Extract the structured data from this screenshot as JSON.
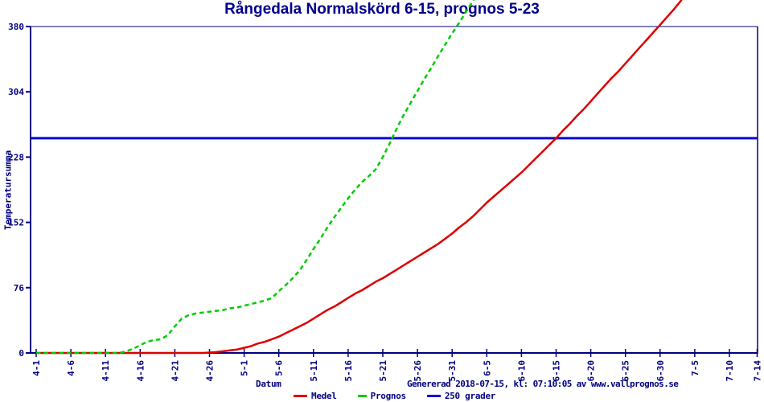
{
  "title": "Rångedala Normalskörd 6-15, prognos 5-23",
  "footer": {
    "generated": "Genererad 2018-07-15, kl: 07:10:05 av www.vallprognos.se"
  },
  "colors": {
    "navy_axis_text": "#000080",
    "title_navy": "#00008b",
    "medel_red": "#dd0000",
    "prognos_green": "#00cc00",
    "grader_blue": "#0000dd",
    "background": "#ffffff"
  },
  "chart_data": {
    "type": "line",
    "title": "Rångedala Normalskörd 6-15, prognos 5-23",
    "xlabel": "Datum",
    "ylabel": "Temperatursumma",
    "x_unit": "days after 4-1",
    "ylim": [
      0,
      380
    ],
    "y_ticks": [
      0,
      76,
      152,
      228,
      304,
      380
    ],
    "grid": false,
    "legend_position": "bottom",
    "x_ticks": [
      {
        "day": 0,
        "label": "4-1"
      },
      {
        "day": 5,
        "label": "4-6"
      },
      {
        "day": 10,
        "label": "4-11"
      },
      {
        "day": 15,
        "label": "4-16"
      },
      {
        "day": 20,
        "label": "4-21"
      },
      {
        "day": 25,
        "label": "4-26"
      },
      {
        "day": 30,
        "label": "5-1"
      },
      {
        "day": 35,
        "label": "5-6"
      },
      {
        "day": 40,
        "label": "5-11"
      },
      {
        "day": 45,
        "label": "5-16"
      },
      {
        "day": 50,
        "label": "5-21"
      },
      {
        "day": 55,
        "label": "5-26"
      },
      {
        "day": 60,
        "label": "5-31"
      },
      {
        "day": 65,
        "label": "6-5"
      },
      {
        "day": 70,
        "label": "6-10"
      },
      {
        "day": 75,
        "label": "6-15"
      },
      {
        "day": 80,
        "label": "6-20"
      },
      {
        "day": 85,
        "label": "6-25"
      },
      {
        "day": 90,
        "label": "6-30"
      },
      {
        "day": 95,
        "label": "7-5"
      },
      {
        "day": 100,
        "label": "7-10"
      },
      {
        "day": 104,
        "label": "7-14"
      }
    ],
    "series": [
      {
        "name": "Medel",
        "color": "#dd0000",
        "style": "solid",
        "points": [
          [
            0,
            0
          ],
          [
            5,
            0
          ],
          [
            10,
            0
          ],
          [
            15,
            0
          ],
          [
            20,
            0
          ],
          [
            24,
            0
          ],
          [
            25,
            0.5
          ],
          [
            26,
            1
          ],
          [
            27,
            2
          ],
          [
            28,
            3
          ],
          [
            29,
            4
          ],
          [
            30,
            6
          ],
          [
            31,
            8
          ],
          [
            32,
            11
          ],
          [
            33,
            13
          ],
          [
            34,
            16
          ],
          [
            35,
            19
          ],
          [
            36,
            23
          ],
          [
            37,
            27
          ],
          [
            38,
            31
          ],
          [
            39,
            35
          ],
          [
            40,
            40
          ],
          [
            41,
            45
          ],
          [
            42,
            50
          ],
          [
            43,
            54
          ],
          [
            44,
            59
          ],
          [
            45,
            64
          ],
          [
            46,
            69
          ],
          [
            47,
            73
          ],
          [
            48,
            78
          ],
          [
            49,
            83
          ],
          [
            50,
            87
          ],
          [
            51,
            92
          ],
          [
            52,
            97
          ],
          [
            53,
            102
          ],
          [
            54,
            107
          ],
          [
            55,
            112
          ],
          [
            56,
            117
          ],
          [
            57,
            122
          ],
          [
            58,
            127
          ],
          [
            59,
            133
          ],
          [
            60,
            139
          ],
          [
            61,
            146
          ],
          [
            62,
            152
          ],
          [
            63,
            159
          ],
          [
            64,
            167
          ],
          [
            65,
            175
          ],
          [
            66,
            182
          ],
          [
            67,
            189
          ],
          [
            68,
            196
          ],
          [
            69,
            203
          ],
          [
            70,
            210
          ],
          [
            71,
            218
          ],
          [
            72,
            226
          ],
          [
            73,
            234
          ],
          [
            74,
            242
          ],
          [
            75,
            250
          ],
          [
            76,
            259
          ],
          [
            77,
            267
          ],
          [
            78,
            276
          ],
          [
            79,
            284
          ],
          [
            80,
            293
          ],
          [
            81,
            302
          ],
          [
            82,
            311
          ],
          [
            83,
            320
          ],
          [
            84,
            328
          ],
          [
            85,
            337
          ],
          [
            86,
            346
          ],
          [
            87,
            355
          ],
          [
            88,
            364
          ],
          [
            89,
            373
          ],
          [
            90,
            382
          ],
          [
            91,
            391
          ],
          [
            92,
            400
          ],
          [
            93,
            410
          ],
          [
            93.6,
            418
          ]
        ]
      },
      {
        "name": "Prognos",
        "color": "#00cc00",
        "style": "dashed",
        "points": [
          [
            0,
            0
          ],
          [
            5,
            0
          ],
          [
            10,
            0
          ],
          [
            12,
            0
          ],
          [
            13,
            2
          ],
          [
            14,
            5
          ],
          [
            15,
            9
          ],
          [
            16,
            13
          ],
          [
            17,
            15
          ],
          [
            18,
            16
          ],
          [
            19,
            21
          ],
          [
            20,
            31
          ],
          [
            21,
            40
          ],
          [
            22,
            44
          ],
          [
            23,
            46
          ],
          [
            24,
            47
          ],
          [
            25,
            48
          ],
          [
            26,
            49
          ],
          [
            27,
            50
          ],
          [
            28,
            52
          ],
          [
            29,
            53
          ],
          [
            30,
            55
          ],
          [
            31,
            57
          ],
          [
            32,
            59
          ],
          [
            33,
            61
          ],
          [
            34,
            64
          ],
          [
            35,
            72
          ],
          [
            36,
            79
          ],
          [
            37,
            87
          ],
          [
            38,
            96
          ],
          [
            39,
            108
          ],
          [
            40,
            121
          ],
          [
            41,
            133
          ],
          [
            42,
            146
          ],
          [
            43,
            158
          ],
          [
            44,
            169
          ],
          [
            45,
            180
          ],
          [
            46,
            190
          ],
          [
            47,
            199
          ],
          [
            48,
            206
          ],
          [
            49,
            214
          ],
          [
            50,
            228
          ],
          [
            51,
            244
          ],
          [
            52,
            261
          ],
          [
            53,
            277
          ],
          [
            54,
            291
          ],
          [
            55,
            305
          ],
          [
            56,
            319
          ],
          [
            57,
            332
          ],
          [
            58,
            346
          ],
          [
            59,
            359
          ],
          [
            60,
            372
          ],
          [
            61,
            384
          ],
          [
            62,
            397
          ],
          [
            63,
            410
          ],
          [
            63.6,
            418
          ]
        ]
      },
      {
        "name": "250 grader",
        "color": "#0000dd",
        "style": "solid",
        "threshold": 250,
        "points": [
          [
            -0.8,
            250
          ],
          [
            104.1,
            250
          ]
        ]
      }
    ]
  }
}
